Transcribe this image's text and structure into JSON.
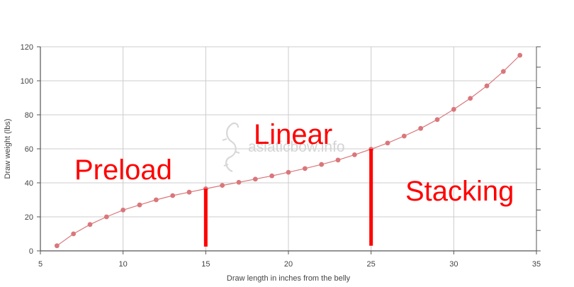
{
  "chart_data": {
    "type": "line",
    "xlabel": "Draw length in inches from the belly",
    "ylabel": "Draw weight (lbs)",
    "xlim": [
      5,
      35
    ],
    "ylim": [
      0,
      120
    ],
    "x_ticks": [
      "5",
      "10",
      "15",
      "20",
      "25",
      "30",
      "35"
    ],
    "y_ticks": [
      "0",
      "20",
      "40",
      "60",
      "80",
      "100",
      "120"
    ],
    "grid": true,
    "series": [
      {
        "color": "#d9777b",
        "x": [
          6,
          7,
          8,
          9,
          10,
          11,
          12,
          13,
          14,
          15,
          16,
          17,
          18,
          19,
          20,
          21,
          22,
          23,
          24,
          25,
          26,
          27,
          28,
          29,
          30,
          31,
          32,
          33,
          34
        ],
        "y": [
          3,
          10,
          15.5,
          20,
          24,
          27,
          30,
          32.5,
          34.5,
          36.5,
          38.5,
          40.3,
          42.2,
          44.1,
          46.2,
          48.4,
          50.8,
          53.4,
          56.5,
          59.8,
          63.4,
          67.5,
          72,
          77.2,
          83.2,
          89.7,
          97,
          105.5,
          115
        ]
      }
    ],
    "annotations": {
      "preload": "Preload",
      "linear": "Linear",
      "stacking": "Stacking"
    },
    "markers": [
      {
        "x": 15,
        "y_from": 2.5,
        "y_to": 36.5
      },
      {
        "x": 25,
        "y_from": 3,
        "y_to": 60
      }
    ],
    "annotation_color": "#ff0000",
    "watermark": "asiaticbow.info"
  }
}
